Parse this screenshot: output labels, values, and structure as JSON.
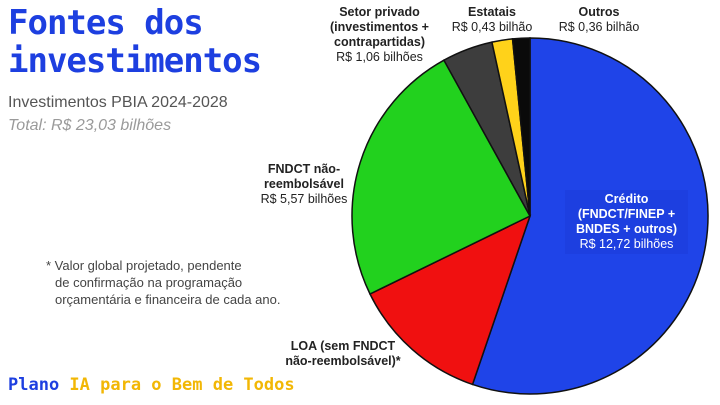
{
  "header": {
    "title": "Fontes dos\ninvestimentos",
    "subtitle": "Investimentos PBIA 2024-2028",
    "total": "Total: R$ 23,03 bilhões"
  },
  "note": {
    "lines": [
      "* Valor global projetado, pendente",
      "de confirmação na programação",
      "orçamentária e financeira de cada ano."
    ]
  },
  "brand": {
    "part1": "Plano ",
    "part2": "IA para o Bem de Todos"
  },
  "colors": {
    "title": "#1d3fe0",
    "brand_accent": "#f2b705"
  },
  "chart_data": {
    "type": "pie",
    "unit": "R$ bilhões",
    "total": 23.03,
    "slices": [
      {
        "name": "Crédito (FNDCT/FINEP + BNDES + outros)",
        "label_lines": [
          "Crédito",
          "(FNDCT/FINEP +",
          "BNDES + outros)"
        ],
        "value_text": "R$ 12,72 bilhões",
        "value": 12.72,
        "color": "#1f44e8"
      },
      {
        "name": "LOA (sem FNDCT não-reembolsável)*",
        "label_lines": [
          "LOA (sem FNDCT",
          "não-reembolsável)*"
        ],
        "value_text": "",
        "value": 2.89,
        "color": "#f01010"
      },
      {
        "name": "FNDCT não-reembolsável",
        "label_lines": [
          "FNDCT não-",
          "reembolsável"
        ],
        "value_text": "R$ 5,57 bilhões",
        "value": 5.57,
        "color": "#22d11e"
      },
      {
        "name": "Setor privado (investimentos + contrapartidas)",
        "label_lines": [
          "Setor privado",
          "(investimentos +",
          "contrapartidas)"
        ],
        "value_text": "R$ 1,06 bilhões",
        "value": 1.06,
        "color": "#3d3d3d"
      },
      {
        "name": "Estatais",
        "label_lines": [
          "Estatais"
        ],
        "value_text": "R$ 0,43 bilhão",
        "value": 0.43,
        "color": "#ffd21a"
      },
      {
        "name": "Outros",
        "label_lines": [
          "Outros"
        ],
        "value_text": "R$ 0,36 bilhão",
        "value": 0.36,
        "color": "#0a0a0a"
      }
    ]
  }
}
